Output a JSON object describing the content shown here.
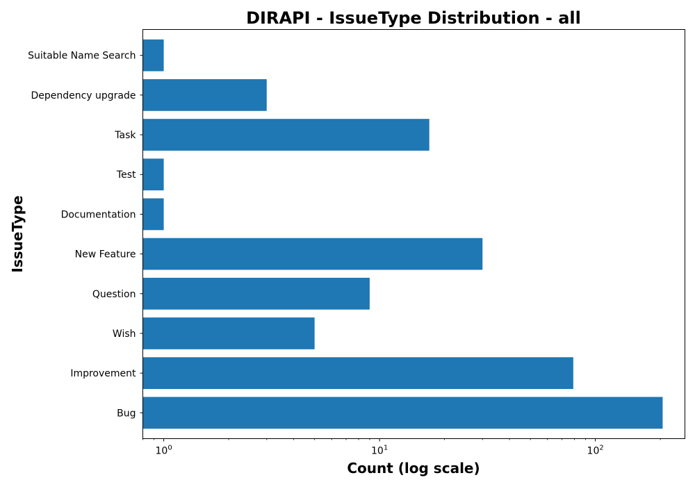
{
  "chart_data": {
    "type": "bar",
    "orientation": "horizontal",
    "title": "DIRAPI - IssueType Distribution - all",
    "xlabel": "Count (log scale)",
    "ylabel": "IssueType",
    "x_scale": "log",
    "x_ticks": [
      {
        "value": 1,
        "base": "10",
        "exp": "0"
      },
      {
        "value": 10,
        "base": "10",
        "exp": "1"
      },
      {
        "value": 100,
        "base": "10",
        "exp": "2"
      }
    ],
    "xlim": [
      0.8,
      260
    ],
    "categories": [
      "Bug",
      "Improvement",
      "Wish",
      "Question",
      "New Feature",
      "Documentation",
      "Test",
      "Task",
      "Dependency upgrade",
      "Suitable Name Search"
    ],
    "values": [
      205,
      79,
      5,
      9,
      30,
      1,
      1,
      17,
      3,
      1
    ],
    "bar_color": "#1f77b4",
    "grid": false,
    "legend": "none"
  }
}
